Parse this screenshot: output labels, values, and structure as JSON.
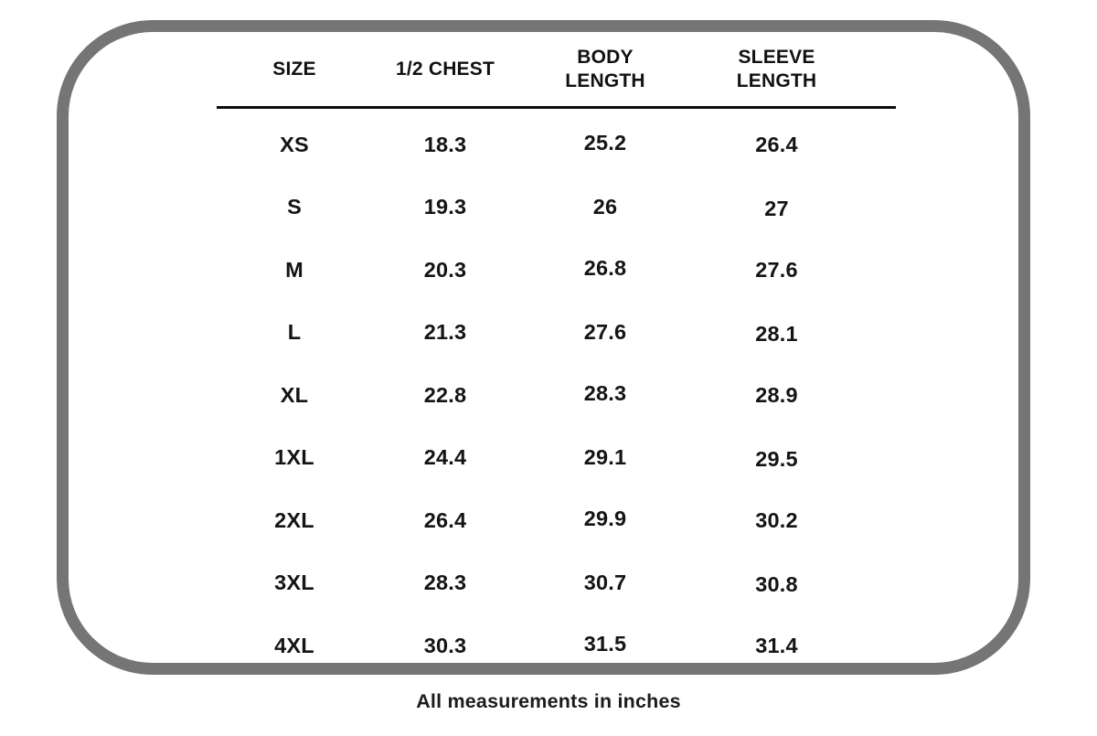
{
  "chart_data": {
    "type": "table",
    "title": "",
    "columns": [
      "SIZE",
      "1/2 CHEST",
      "BODY LENGTH",
      "SLEEVE LENGTH"
    ],
    "rows": [
      [
        "XS",
        "18.3",
        "25.2",
        "26.4"
      ],
      [
        "S",
        "19.3",
        "26",
        "27"
      ],
      [
        "M",
        "20.3",
        "26.8",
        "27.6"
      ],
      [
        "L",
        "21.3",
        "27.6",
        "28.1"
      ],
      [
        "XL",
        "22.8",
        "28.3",
        "28.9"
      ],
      [
        "1XL",
        "24.4",
        "29.1",
        "29.5"
      ],
      [
        "2XL",
        "26.4",
        "29.9",
        "30.2"
      ],
      [
        "3XL",
        "28.3",
        "30.7",
        "30.8"
      ],
      [
        "4XL",
        "30.3",
        "31.5",
        "31.4"
      ]
    ],
    "footnote": "All measurements in inches",
    "units": "inches"
  },
  "colors": {
    "frame_border": "#757575",
    "text": "#141414",
    "rule": "#0d0d0d",
    "background": "#ffffff"
  }
}
